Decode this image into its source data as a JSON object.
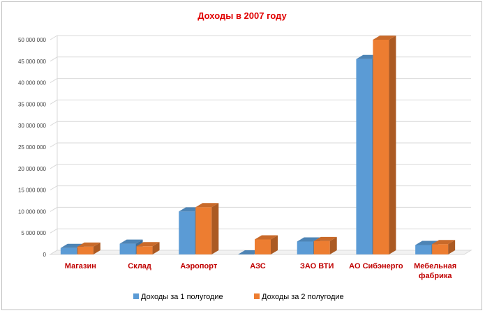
{
  "chart_data": {
    "type": "bar",
    "title": "Доходы в 2007 году",
    "xlabel": "",
    "ylabel": "",
    "categories": [
      "Магазин",
      "Склад",
      "Аэропорт",
      "АЗС",
      "ЗАО ВТИ",
      "АО Сибэнерго",
      "Мебельная фабрика"
    ],
    "series": [
      {
        "name": "Доходы за 1 полугодие",
        "color": "#5b9bd5",
        "values": [
          1500000,
          2500000,
          10000000,
          0,
          3000000,
          45500000,
          2200000
        ]
      },
      {
        "name": "Доходы за 2 полугодие",
        "color": "#ed7d31",
        "values": [
          1800000,
          1900000,
          11000000,
          3500000,
          3100000,
          50000000,
          2400000
        ]
      }
    ],
    "yticks": [
      "0",
      "5 000 000",
      "10 000 000",
      "15 000 000",
      "20 000 000",
      "25 000 000",
      "30 000 000",
      "35 000 000",
      "40 000 000",
      "45 000 000",
      "50 000 000"
    ],
    "ylim": [
      0,
      50000000
    ],
    "grid": true,
    "legend_position": "bottom",
    "style": "3d-clustered-column"
  }
}
